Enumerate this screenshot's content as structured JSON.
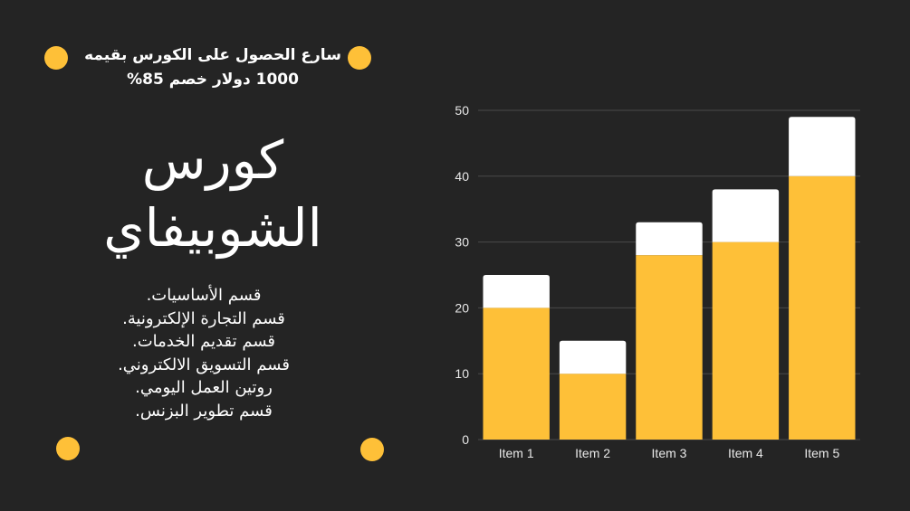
{
  "promo": {
    "line1": "سارع الحصول على الكورس بقيمه",
    "line2": "1000 دولار خصم 85%"
  },
  "title": {
    "line1": "كورس",
    "line2": "الشوبيفاي"
  },
  "features": [
    "قسم الأساسيات.",
    "قسم التجارة الإلكترونية.",
    "قسم تقديم الخدمات.",
    "قسم التسويق الالكتروني.",
    "روتين العمل اليومي.",
    "قسم تطوير البزنس."
  ],
  "colors": {
    "background": "#242424",
    "accent": "#FEC038",
    "stack_top": "#FFFFFF"
  },
  "chart_data": {
    "type": "bar",
    "stacked": true,
    "categories": [
      "Item 1",
      "Item 2",
      "Item 3",
      "Item 4",
      "Item 5"
    ],
    "series": [
      {
        "values": [
          20,
          10,
          28,
          30,
          40
        ],
        "color": "#FEC038"
      },
      {
        "values": [
          5,
          5,
          5,
          8,
          9
        ],
        "color": "#FFFFFF"
      }
    ],
    "title": "",
    "xlabel": "",
    "ylabel": "",
    "ylim": [
      0,
      50
    ],
    "yticks": [
      0,
      10,
      20,
      30,
      40,
      50
    ],
    "grid": true,
    "legend": "none"
  }
}
